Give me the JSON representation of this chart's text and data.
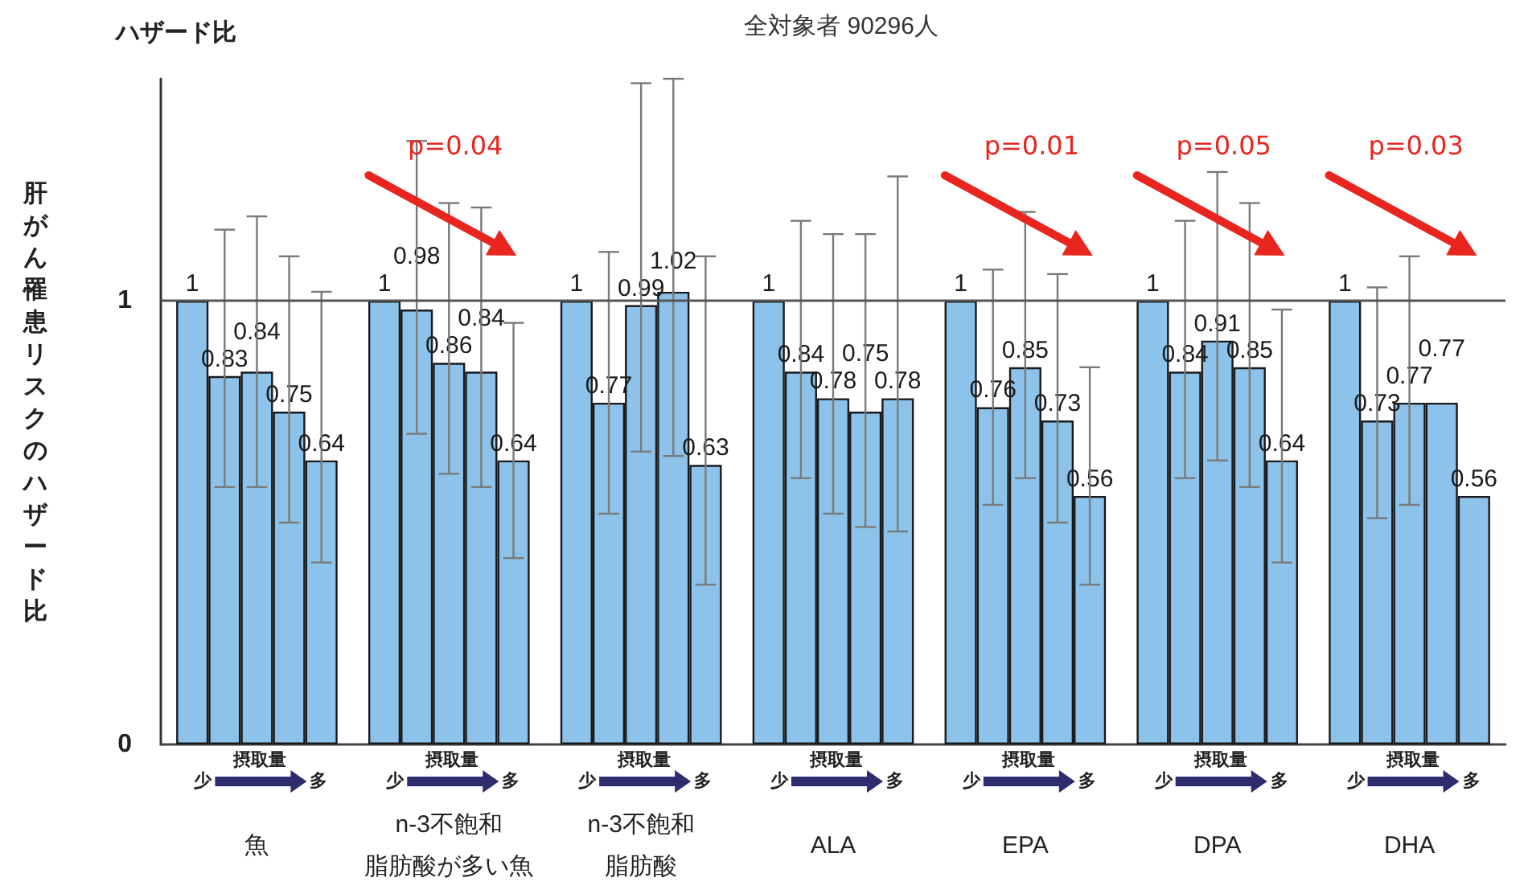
{
  "chart_data": {
    "type": "bar",
    "title": "全対象者 90296人",
    "ylabel": "肝がん罹患リスクのハザード比",
    "categories": [
      "魚",
      "n-3不飽和脂肪酸が多い魚",
      "n-3不飽和脂肪酸",
      "ALA",
      "EPA",
      "DPA",
      "DHA"
    ],
    "series": [
      {
        "color": "#8dc3ea",
        "values": [
          1,
          1,
          1,
          1,
          1,
          1,
          1
        ]
      },
      {
        "color": "#8dc3ea",
        "values": [
          0.83,
          0.98,
          0.77,
          0.84,
          0.76,
          0.84,
          0.73
        ],
        "errors": [
          [
            0.58,
            1.16
          ],
          [
            0.7,
            1.36
          ],
          [
            0.52,
            1.11
          ],
          [
            0.6,
            1.18
          ],
          [
            0.54,
            1.07
          ],
          [
            0.6,
            1.18
          ],
          [
            0.51,
            1.03
          ]
        ]
      },
      {
        "color": "#8dc3ea",
        "values": [
          0.84,
          0.86,
          0.99,
          0.78,
          0.85,
          0.91,
          0.77
        ],
        "errors": [
          [
            0.58,
            1.19
          ],
          [
            0.61,
            1.22
          ],
          [
            0.66,
            1.49
          ],
          [
            0.52,
            1.15
          ],
          [
            0.6,
            1.2
          ],
          [
            0.64,
            1.29
          ],
          [
            0.54,
            1.1
          ]
        ]
      },
      {
        "color": "#8dc3ea",
        "values": [
          0.75,
          0.84,
          1.02,
          0.75,
          0.73,
          0.85,
          0.77
        ],
        "errors": [
          [
            0.5,
            1.1
          ],
          [
            0.58,
            1.21
          ],
          [
            0.65,
            1.5
          ],
          [
            0.49,
            1.15
          ],
          [
            0.5,
            1.06
          ],
          [
            0.58,
            1.22
          ],
          null
        ]
      },
      {
        "color": "#8dc3ea",
        "values": [
          0.64,
          0.64,
          0.63,
          0.78,
          0.56,
          0.64,
          0.56
        ],
        "errors": [
          [
            0.41,
            1.02
          ],
          [
            0.42,
            0.95
          ],
          [
            0.36,
            1.1
          ],
          [
            0.48,
            1.28
          ],
          [
            0.36,
            0.85
          ],
          [
            0.41,
            0.98
          ],
          null
        ]
      }
    ],
    "ylim": [
      0,
      1.5
    ],
    "yticks": [
      0,
      1
    ],
    "ref_lines": [
      {
        "axis": "y",
        "value": 1,
        "color": "#555555"
      }
    ],
    "data_labels": true,
    "annotations": [
      "ハザード比",
      "摂取量",
      "少",
      "多",
      "p=0.04",
      "p=0.01",
      "p=0.05",
      "p=0.03"
    ]
  }
}
